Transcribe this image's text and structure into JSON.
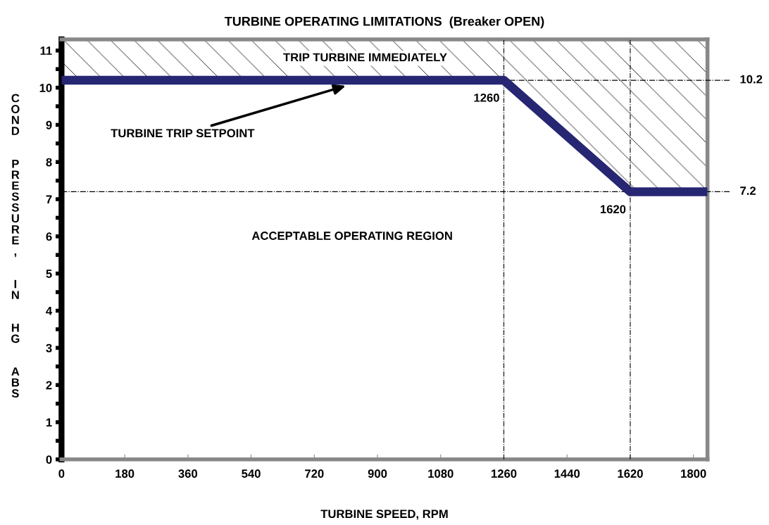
{
  "chart_data": {
    "type": "line",
    "title": "TURBINE OPERATING LIMITATIONS  (Breaker OPEN)",
    "xlabel": "TURBINE SPEED, RPM",
    "ylabel": "COND  PRESSURE,  IN  HG  ABS",
    "x": [
      0,
      1260,
      1620,
      1840
    ],
    "series": [
      {
        "color": "#262673",
        "values": [
          10.2,
          10.2,
          7.2,
          7.2
        ]
      }
    ],
    "xlim": [
      0,
      1840
    ],
    "xticks": [
      0,
      180,
      360,
      540,
      720,
      900,
      1080,
      1260,
      1440,
      1620,
      1800
    ],
    "ylim": [
      0,
      11.3
    ],
    "yticks": [
      0,
      1,
      2,
      3,
      4,
      5,
      6,
      7,
      8,
      9,
      10,
      11
    ],
    "ref_lines": [
      {
        "axis": "y",
        "value": 10.2,
        "label": "10.2",
        "line_style": "dashdot"
      },
      {
        "axis": "y",
        "value": 7.2,
        "label": "7.2",
        "line_style": "dashdot"
      },
      {
        "axis": "x",
        "value": 1260,
        "label": "1260",
        "line_style": "dashdot"
      },
      {
        "axis": "x",
        "value": 1620,
        "label": "1620",
        "line_style": "dashdot"
      }
    ],
    "annotations": [
      "TRIP TURBINE IMMEDIATELY",
      "ACCEPTABLE OPERATING REGION",
      {
        "text": "TURBINE TRIP SETPOINT",
        "x": 810,
        "y": 10.05
      }
    ],
    "grid": false,
    "legend": false,
    "marker": "none",
    "line_style": "solid"
  }
}
